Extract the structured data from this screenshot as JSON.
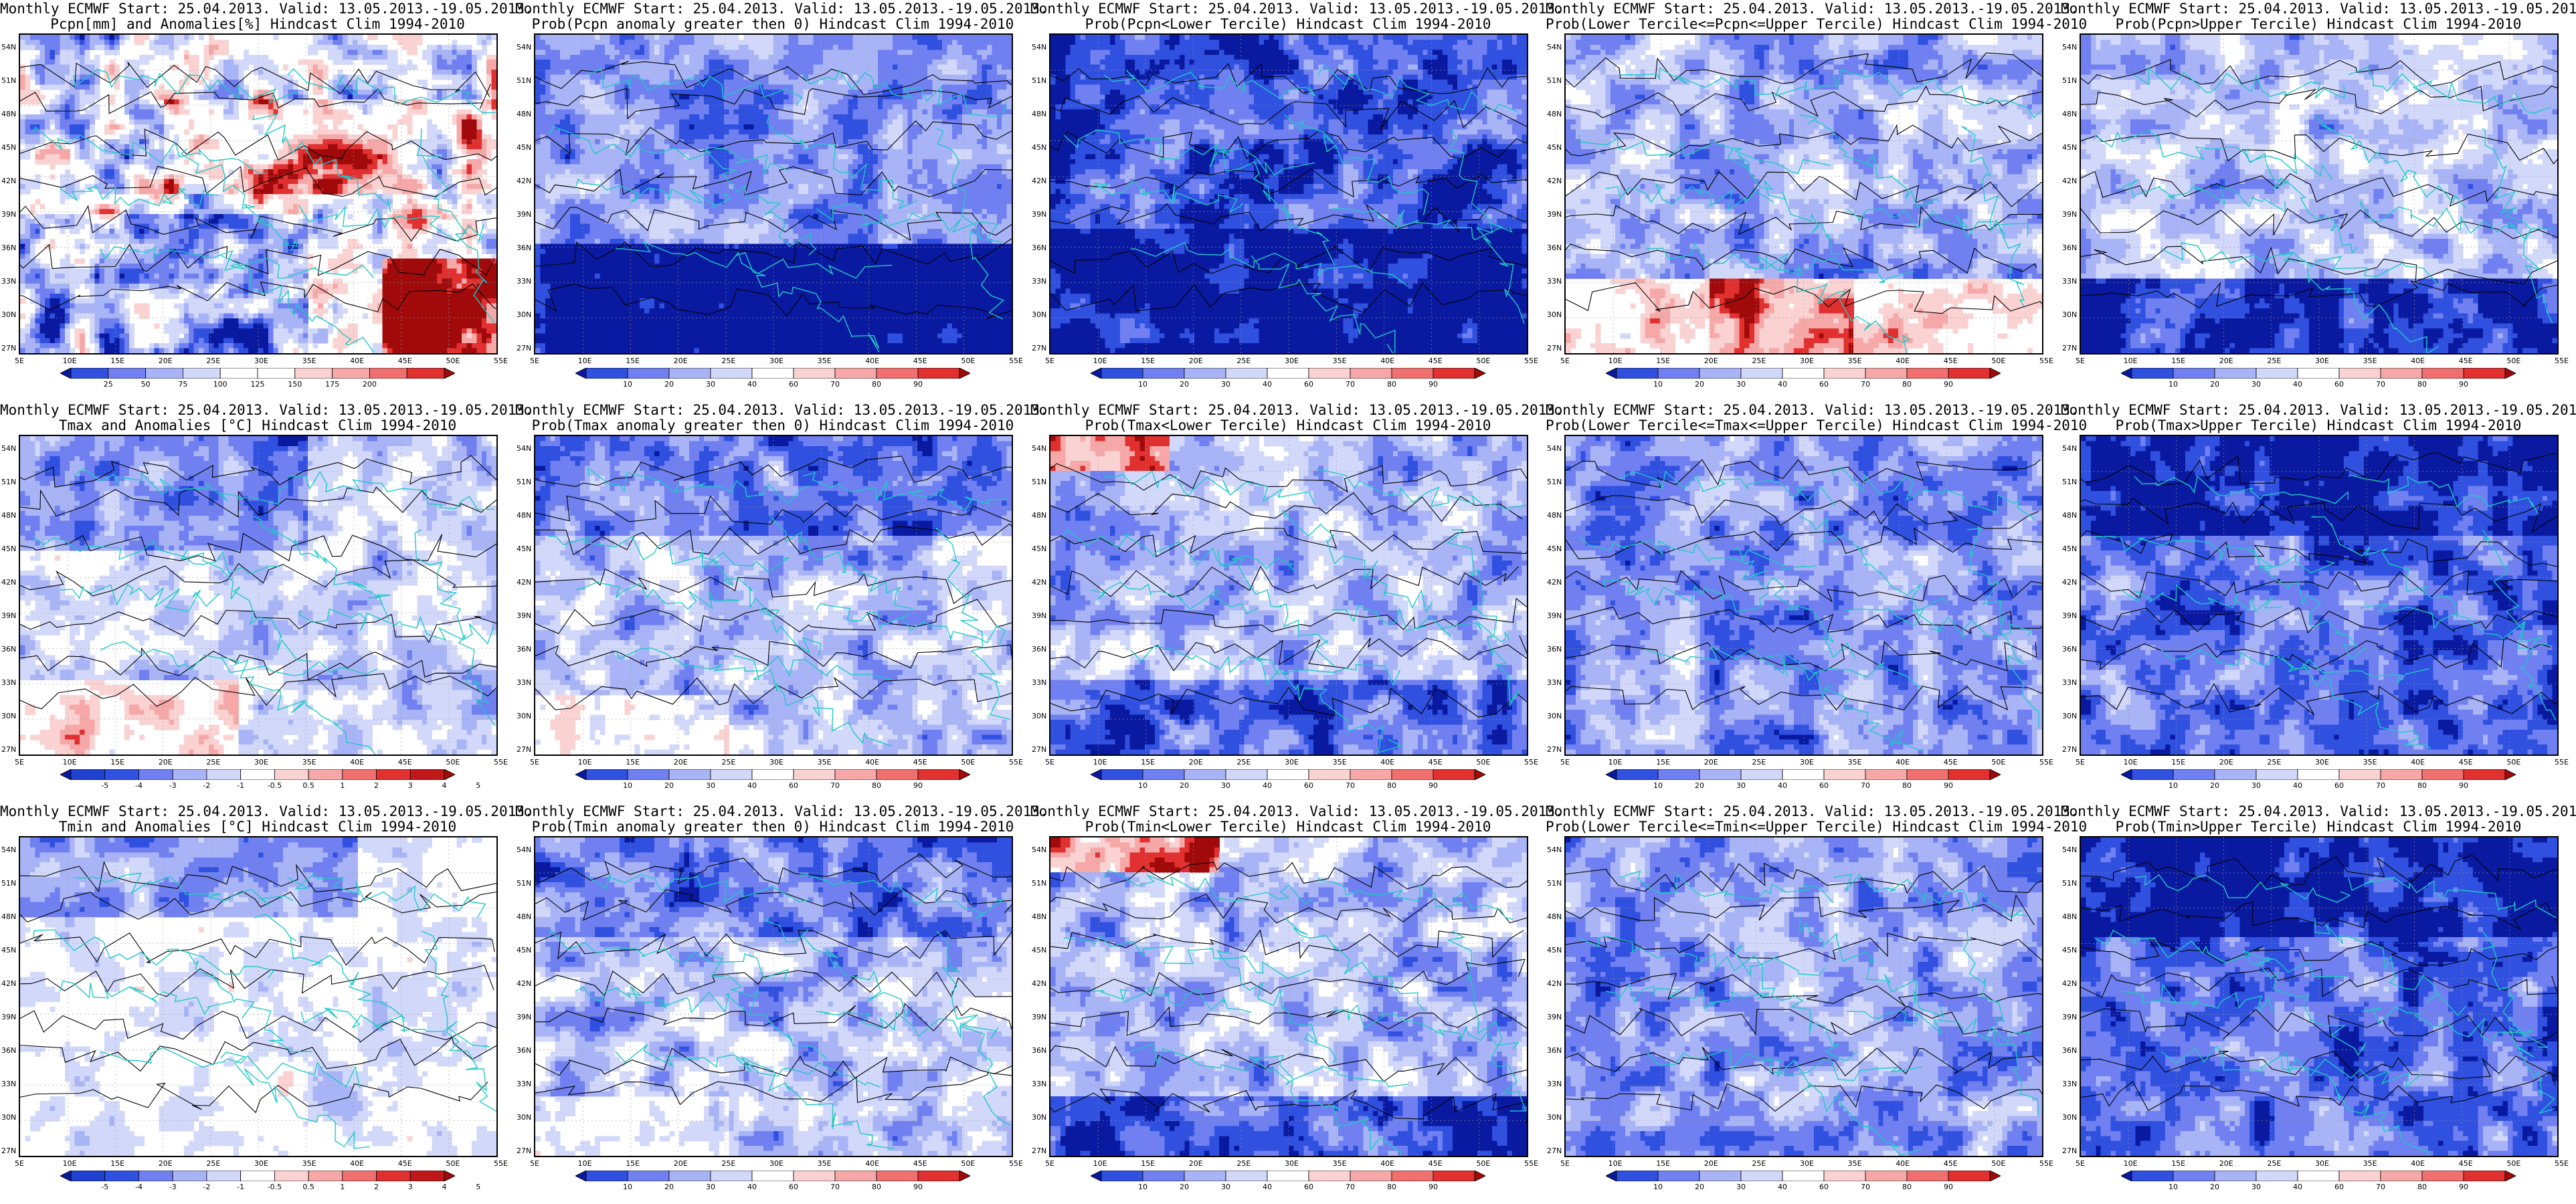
{
  "figure": {
    "lon_ticks": [
      "5E",
      "10E",
      "15E",
      "20E",
      "25E",
      "30E",
      "35E",
      "40E",
      "45E",
      "50E",
      "55E"
    ],
    "lat_ticks": [
      "54N",
      "51N",
      "48N",
      "45N",
      "42N",
      "39N",
      "36N",
      "33N",
      "30N",
      "27N"
    ],
    "colorbars": {
      "pcpn_anom": {
        "labels": [
          "25",
          "50",
          "75",
          "100",
          "125",
          "150",
          "175",
          "200"
        ],
        "colors": [
          "#0a1aa0",
          "#3050e0",
          "#7080f0",
          "#a8b4f6",
          "#d2d8fa",
          "#ffffff",
          "#ffffff",
          "#fad2d2",
          "#f6a8a8",
          "#f07070",
          "#e03030",
          "#a00a0a"
        ]
      },
      "prob": {
        "labels": [
          "10",
          "20",
          "30",
          "40",
          "60",
          "70",
          "80",
          "90"
        ],
        "colors": [
          "#0a1aa0",
          "#3050e0",
          "#7080f0",
          "#a8b4f6",
          "#d2d8fa",
          "#ffffff",
          "#fad2d2",
          "#f6a8a8",
          "#f07070",
          "#e03030",
          "#a00a0a"
        ]
      },
      "temp_anom": {
        "labels": [
          "-5",
          "-4",
          "-3",
          "-2",
          "-1",
          "-0.5",
          "0.5",
          "1",
          "2",
          "3",
          "4",
          "5"
        ],
        "colors": [
          "#0a1aa0",
          "#2040d0",
          "#3050e0",
          "#7080f0",
          "#a8b4f6",
          "#d2d8fa",
          "#ffffff",
          "#fad2d2",
          "#f6a8a8",
          "#f07070",
          "#e03030",
          "#c01818",
          "#a00a0a"
        ]
      }
    },
    "palette": {
      "deep_blue": "#0a1aa0",
      "blue": "#3050e0",
      "mid_blue": "#7080f0",
      "light_blue": "#a8b4f6",
      "pale_blue": "#d2d8fa",
      "white": "#ffffff",
      "pale_red": "#fad2d2",
      "light_red": "#f6a8a8",
      "red": "#e03030",
      "deep_red": "#a00a0a",
      "coast": "#20c8c8",
      "contour": "#000000"
    },
    "panels": [
      {
        "title1": "Monthly ECMWF Start: 25.04.2013. Valid: 13.05.2013.-19.05.2013.",
        "title2": "Pcpn[mm] and Anomalies[%] Hindcast Clim 1994-2010",
        "colorbar": "pcpn_anom",
        "scheme": "pcpn"
      },
      {
        "title1": "Monthly ECMWF Start: 25.04.2013. Valid: 13.05.2013.-19.05.2013.",
        "title2": "Prob(Pcpn anomaly greater then 0) Hindcast Clim 1994-2010",
        "colorbar": "prob",
        "scheme": "drySouth"
      },
      {
        "title1": "Monthly ECMWF Start: 25.04.2013. Valid: 13.05.2013.-19.05.2013.",
        "title2": "Prob(Pcpn<Lower Tercile) Hindcast Clim 1994-2010",
        "colorbar": "prob",
        "scheme": "blueAll"
      },
      {
        "title1": "Monthly ECMWF Start: 25.04.2013. Valid: 13.05.2013.-19.05.2013.",
        "title2": "Prob(Lower Tercile<=Pcpn<=Upper Tercile) Hindcast Clim 1994-2010",
        "colorbar": "prob",
        "scheme": "midRedSouth"
      },
      {
        "title1": "Monthly ECMWF Start: 25.04.2013. Valid: 13.05.2013.-19.05.2013.",
        "title2": "Prob(Pcpn>Upper Tercile) Hindcast Clim 1994-2010",
        "colorbar": "prob",
        "scheme": "upperBlue"
      },
      {
        "title1": "Monthly ECMWF Start: 25.04.2013. Valid: 13.05.2013.-19.05.2013.",
        "title2": "Tmax and Anomalies [°C] Hindcast Clim 1994-2010",
        "colorbar": "temp_anom",
        "scheme": "tempAnom"
      },
      {
        "title1": "Monthly ECMWF Start: 25.04.2013. Valid: 13.05.2013.-19.05.2013.",
        "title2": "Prob(Tmax anomaly greater then 0) Hindcast Clim 1994-2010",
        "colorbar": "prob",
        "scheme": "tempProb"
      },
      {
        "title1": "Monthly ECMWF Start: 25.04.2013. Valid: 13.05.2013.-19.05.2013.",
        "title2": "Prob(Tmax<Lower Tercile) Hindcast Clim 1994-2010",
        "colorbar": "prob",
        "scheme": "lowerTmax"
      },
      {
        "title1": "Monthly ECMWF Start: 25.04.2013. Valid: 13.05.2013.-19.05.2013.",
        "title2": "Prob(Lower Tercile<=Tmax<=Upper Tercile) Hindcast Clim 1994-2010",
        "colorbar": "prob",
        "scheme": "midBlue"
      },
      {
        "title1": "Monthly ECMWF Start: 25.04.2013. Valid: 13.05.2013.-19.05.2013.",
        "title2": "Prob(Tmax>Upper Tercile) Hindcast Clim 1994-2010",
        "colorbar": "prob",
        "scheme": "upperDeep"
      },
      {
        "title1": "Monthly ECMWF Start: 25.04.2013. Valid: 13.05.2013.-19.05.2013.",
        "title2": "Tmin and Anomalies [°C] Hindcast Clim 1994-2010",
        "colorbar": "temp_anom",
        "scheme": "tempAnomMin"
      },
      {
        "title1": "Monthly ECMWF Start: 25.04.2013. Valid: 13.05.2013.-19.05.2013.",
        "title2": "Prob(Tmin anomaly greater then 0) Hindcast Clim 1994-2010",
        "colorbar": "prob",
        "scheme": "tempProb"
      },
      {
        "title1": "Monthly ECMWF Start: 25.04.2013. Valid: 13.05.2013.-19.05.2013.",
        "title2": "Prob(Tmin<Lower Tercile) Hindcast Clim 1994-2010",
        "colorbar": "prob",
        "scheme": "lowerTmin"
      },
      {
        "title1": "Monthly ECMWF Start: 25.04.2013. Valid: 13.05.2013.-19.05.2013.",
        "title2": "Prob(Lower Tercile<=Tmin<=Upper Tercile) Hindcast Clim 1994-2010",
        "colorbar": "prob",
        "scheme": "midBlue"
      },
      {
        "title1": "Monthly ECMWF Start: 25.04.2013. Valid: 13.05.2013.-19.05.2013.",
        "title2": "Prob(Tmin>Upper Tercile) Hindcast Clim 1994-2010",
        "colorbar": "prob",
        "scheme": "upperDeep"
      }
    ]
  }
}
